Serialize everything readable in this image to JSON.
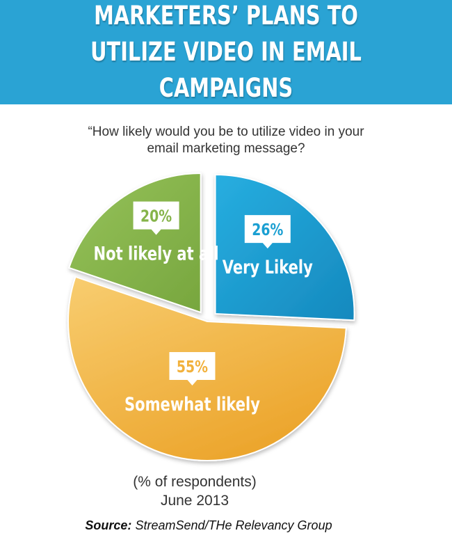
{
  "header": {
    "title": "MARKETERS’ PLANS TO UTILIZE VIDEO IN EMAIL CAMPAIGNS",
    "background": "#2aa3d4"
  },
  "question": "“How likely would you be to utilize video in your email marketing message?",
  "footnote": {
    "line1": "(% of respondents)",
    "line2": "June 2013"
  },
  "source": {
    "label": "Source:",
    "text": "StreamSend/THe Relevancy Group"
  },
  "chart_data": {
    "type": "pie",
    "title": "MARKETERS’ PLANS TO UTILIZE VIDEO IN EMAIL CAMPAIGNS",
    "slices": [
      {
        "label": "Very Likely",
        "value": 26,
        "display": "26%",
        "color": "#1a9fd2",
        "exploded": true
      },
      {
        "label": "Somewhat likely",
        "value": 55,
        "display": "55%",
        "color": "#f2b13c",
        "exploded": false
      },
      {
        "label": "Not likely at all",
        "value": 20,
        "display": "20%",
        "color": "#86b44a",
        "exploded": true
      }
    ]
  }
}
